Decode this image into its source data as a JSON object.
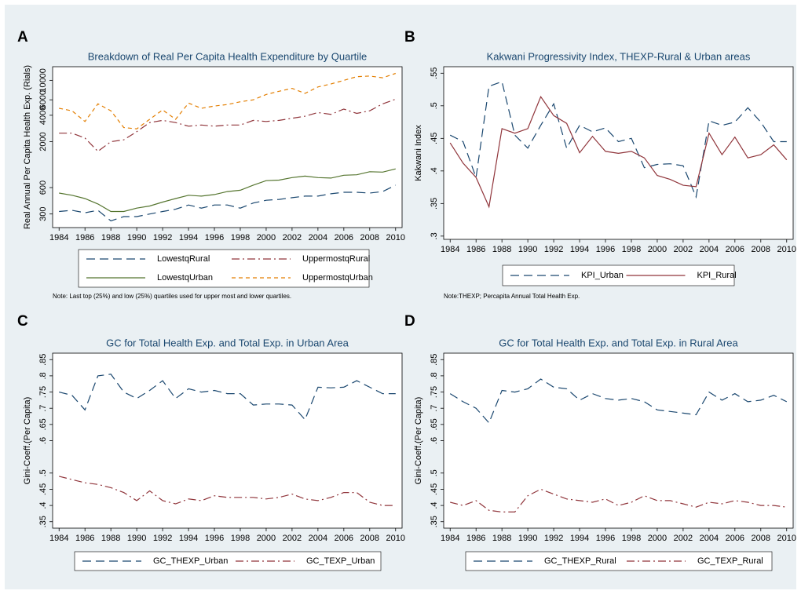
{
  "chart_data": [
    {
      "type": "line",
      "panel": "A",
      "title": "Breakdown of Real Per Capita Health Expenditure by Quartile",
      "ylabel": "Real Annual Per Capita Health Exp. (Rials)",
      "note": "Note: Last top (25%) and low (25%) quartiles used for upper most and lower quartiles.",
      "log_y": true,
      "x": [
        1984,
        1985,
        1986,
        1987,
        1988,
        1989,
        1990,
        1991,
        1992,
        1993,
        1994,
        1995,
        1996,
        1997,
        1998,
        1999,
        2000,
        2001,
        2002,
        2003,
        2004,
        2005,
        2006,
        2007,
        2008,
        2009,
        2010
      ],
      "xlim": [
        1983.5,
        2010.5
      ],
      "xticks": [
        1984,
        1986,
        1988,
        1990,
        1992,
        1994,
        1996,
        1998,
        2000,
        2002,
        2004,
        2006,
        2008,
        2010
      ],
      "ylim": [
        210,
        14300
      ],
      "yticks": [
        300,
        600,
        2000,
        4000,
        6000,
        10000
      ],
      "series": [
        {
          "name": "LowestqRural",
          "color": "#1a476f",
          "dash": "longdash",
          "values": [
            320,
            330,
            310,
            330,
            250,
            280,
            280,
            300,
            320,
            340,
            380,
            350,
            380,
            380,
            350,
            400,
            430,
            440,
            460,
            480,
            480,
            510,
            530,
            530,
            520,
            540,
            640
          ]
        },
        {
          "name": "UppermostqRural",
          "color": "#90353b",
          "dash": "dashdot",
          "values": [
            2500,
            2500,
            2200,
            1550,
            2000,
            2100,
            2600,
            3300,
            3500,
            3300,
            3000,
            3100,
            3000,
            3100,
            3100,
            3500,
            3400,
            3500,
            3700,
            3900,
            4300,
            4100,
            4700,
            4200,
            4500,
            5400,
            6100
          ]
        },
        {
          "name": "LowestqUrban",
          "color": "#55752f",
          "dash": "solid",
          "values": [
            520,
            490,
            450,
            390,
            320,
            320,
            350,
            370,
            410,
            450,
            490,
            480,
            500,
            540,
            560,
            640,
            720,
            730,
            780,
            810,
            780,
            770,
            830,
            840,
            910,
            900,
            980
          ]
        },
        {
          "name": "UppermostqUrban",
          "color": "#e37e00",
          "dash": "shortdash",
          "values": [
            4800,
            4500,
            3400,
            5400,
            4500,
            2900,
            2800,
            3600,
            4600,
            3600,
            5500,
            4800,
            5100,
            5300,
            5700,
            6000,
            6900,
            7500,
            8100,
            7100,
            8400,
            9100,
            10000,
            11000,
            11200,
            10700,
            12000
          ]
        }
      ]
    },
    {
      "type": "line",
      "panel": "B",
      "title": "Kakwani Progressivity Index, THEXP-Rural & Urban areas",
      "ylabel": "Kakwani Index",
      "note": "Note:THEXP; Percapita Annual Total Health Exp.",
      "x": [
        1984,
        1985,
        1986,
        1987,
        1988,
        1989,
        1990,
        1991,
        1992,
        1993,
        1994,
        1995,
        1996,
        1997,
        1998,
        1999,
        2000,
        2001,
        2002,
        2003,
        2004,
        2005,
        2006,
        2007,
        2008,
        2009,
        2010
      ],
      "xlim": [
        1983.5,
        2010.5
      ],
      "xticks": [
        1984,
        1986,
        1988,
        1990,
        1992,
        1994,
        1996,
        1998,
        2000,
        2002,
        2004,
        2006,
        2008,
        2010
      ],
      "ylim": [
        0.295,
        0.56
      ],
      "yticks": [
        {
          "value": 0.3,
          "label": ".3"
        },
        {
          "value": 0.35,
          "label": ".35"
        },
        {
          "value": 0.4,
          "label": ".4"
        },
        {
          "value": 0.45,
          "label": ".45"
        },
        {
          "value": 0.5,
          "label": ".5"
        },
        {
          "value": 0.55,
          "label": ".55"
        }
      ],
      "series": [
        {
          "name": "KPI_Urban",
          "color": "#1a476f",
          "dash": "longdash",
          "values": [
            0.455,
            0.445,
            0.39,
            0.53,
            0.537,
            0.455,
            0.435,
            0.47,
            0.503,
            0.435,
            0.47,
            0.46,
            0.466,
            0.445,
            0.45,
            0.405,
            0.41,
            0.411,
            0.408,
            0.36,
            0.477,
            0.47,
            0.475,
            0.497,
            0.475,
            0.445,
            0.445
          ]
        },
        {
          "name": "KPI_Rural",
          "color": "#90353b",
          "dash": "solid",
          "values": [
            0.443,
            0.412,
            0.39,
            0.345,
            0.465,
            0.458,
            0.465,
            0.514,
            0.485,
            0.473,
            0.428,
            0.453,
            0.43,
            0.427,
            0.43,
            0.42,
            0.393,
            0.387,
            0.378,
            0.376,
            0.458,
            0.425,
            0.452,
            0.42,
            0.425,
            0.44,
            0.417
          ]
        }
      ]
    },
    {
      "type": "line",
      "panel": "C",
      "title": "GC for Total Health Exp. and Total Exp. in Urban Area",
      "ylabel": "Gini-Coeff.(Per Capita)",
      "x": [
        1984,
        1985,
        1986,
        1987,
        1988,
        1989,
        1990,
        1991,
        1992,
        1993,
        1994,
        1995,
        1996,
        1997,
        1998,
        1999,
        2000,
        2001,
        2002,
        2003,
        2004,
        2005,
        2006,
        2007,
        2008,
        2009,
        2010
      ],
      "xlim": [
        1983.5,
        2010.5
      ],
      "xticks": [
        1984,
        1986,
        1988,
        1990,
        1992,
        1994,
        1996,
        1998,
        2000,
        2002,
        2004,
        2006,
        2008,
        2010
      ],
      "ylim": [
        0.33,
        0.87
      ],
      "yticks": [
        {
          "value": 0.35,
          "label": ".35"
        },
        {
          "value": 0.4,
          "label": ".4"
        },
        {
          "value": 0.45,
          "label": ".45"
        },
        {
          "value": 0.5,
          "label": ".5"
        },
        {
          "value": 0.6,
          "label": ".6"
        },
        {
          "value": 0.65,
          "label": ".65"
        },
        {
          "value": 0.7,
          "label": ".7"
        },
        {
          "value": 0.75,
          "label": ".75"
        },
        {
          "value": 0.8,
          "label": ".8"
        },
        {
          "value": 0.85,
          "label": ".85"
        }
      ],
      "series": [
        {
          "name": "GC_THEXP_Urban",
          "color": "#1a476f",
          "dash": "longdash",
          "values": [
            0.75,
            0.74,
            0.695,
            0.8,
            0.805,
            0.75,
            0.73,
            0.755,
            0.785,
            0.73,
            0.76,
            0.75,
            0.755,
            0.745,
            0.745,
            0.71,
            0.713,
            0.713,
            0.71,
            0.665,
            0.765,
            0.763,
            0.765,
            0.785,
            0.765,
            0.745,
            0.745
          ]
        },
        {
          "name": "GC_TEXP_Urban",
          "color": "#90353b",
          "dash": "dashdot",
          "values": [
            0.49,
            0.48,
            0.47,
            0.465,
            0.455,
            0.44,
            0.415,
            0.445,
            0.415,
            0.405,
            0.42,
            0.415,
            0.43,
            0.425,
            0.425,
            0.425,
            0.42,
            0.425,
            0.435,
            0.42,
            0.415,
            0.425,
            0.44,
            0.44,
            0.41,
            0.4,
            0.4
          ]
        }
      ]
    },
    {
      "type": "line",
      "panel": "D",
      "title": "GC for Total Health Exp. and Total Exp. in Rural Area",
      "ylabel": "Gini-Coeff.(Per Capita)",
      "x": [
        1984,
        1985,
        1986,
        1987,
        1988,
        1989,
        1990,
        1991,
        1992,
        1993,
        1994,
        1995,
        1996,
        1997,
        1998,
        1999,
        2000,
        2001,
        2002,
        2003,
        2004,
        2005,
        2006,
        2007,
        2008,
        2009,
        2010
      ],
      "xlim": [
        1983.5,
        2010.5
      ],
      "xticks": [
        1984,
        1986,
        1988,
        1990,
        1992,
        1994,
        1996,
        1998,
        2000,
        2002,
        2004,
        2006,
        2008,
        2010
      ],
      "ylim": [
        0.33,
        0.87
      ],
      "yticks": [
        {
          "value": 0.35,
          "label": ".35"
        },
        {
          "value": 0.4,
          "label": ".4"
        },
        {
          "value": 0.45,
          "label": ".45"
        },
        {
          "value": 0.5,
          "label": ".5"
        },
        {
          "value": 0.6,
          "label": ".6"
        },
        {
          "value": 0.65,
          "label": ".65"
        },
        {
          "value": 0.7,
          "label": ".7"
        },
        {
          "value": 0.75,
          "label": ".75"
        },
        {
          "value": 0.8,
          "label": ".8"
        },
        {
          "value": 0.85,
          "label": ".85"
        }
      ],
      "series": [
        {
          "name": "GC_THEXP_Rural",
          "color": "#1a476f",
          "dash": "longdash",
          "values": [
            0.745,
            0.72,
            0.7,
            0.655,
            0.755,
            0.75,
            0.76,
            0.79,
            0.765,
            0.76,
            0.725,
            0.745,
            0.73,
            0.725,
            0.73,
            0.72,
            0.695,
            0.69,
            0.685,
            0.68,
            0.75,
            0.725,
            0.745,
            0.72,
            0.725,
            0.74,
            0.72
          ]
        },
        {
          "name": "GC_TEXP_Rural",
          "color": "#90353b",
          "dash": "dashdot",
          "values": [
            0.41,
            0.4,
            0.415,
            0.385,
            0.38,
            0.38,
            0.43,
            0.45,
            0.435,
            0.42,
            0.415,
            0.41,
            0.42,
            0.4,
            0.41,
            0.43,
            0.415,
            0.415,
            0.405,
            0.395,
            0.41,
            0.405,
            0.415,
            0.41,
            0.4,
            0.4,
            0.395
          ]
        }
      ]
    }
  ]
}
